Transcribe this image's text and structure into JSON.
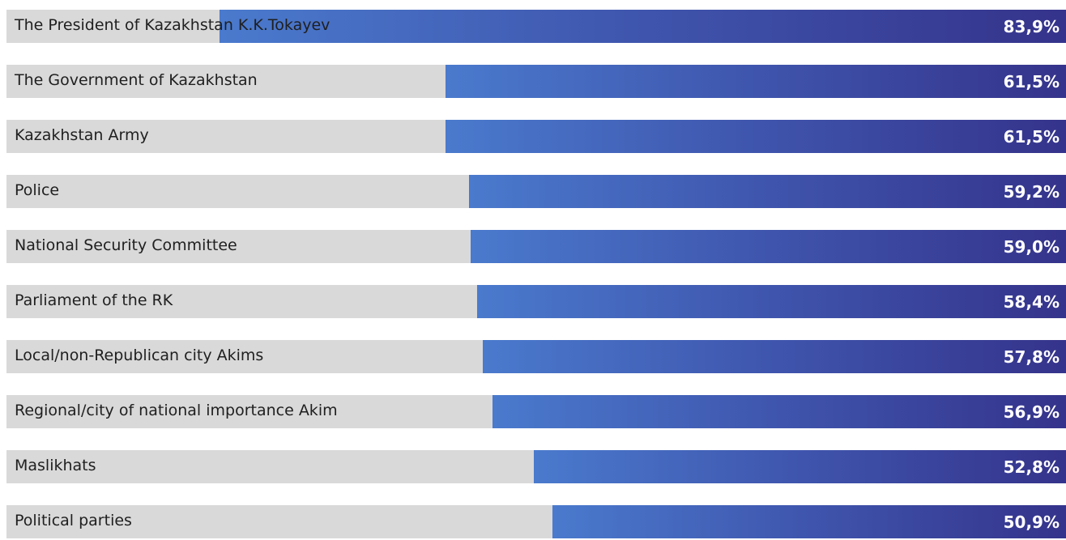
{
  "chart_data": {
    "type": "bar",
    "orientation": "horizontal",
    "categories": [
      "The President of Kazakhstan K.K.Tokayev",
      "The Government of Kazakhstan",
      "Kazakhstan Army",
      "Police",
      "National Security Committee",
      "Parliament of the RK",
      "Local/non-Republican city Akims",
      "Regional/city of national importance Akim",
      "Maslikhats",
      "Political parties"
    ],
    "values": [
      83.9,
      61.5,
      61.5,
      59.2,
      59.0,
      58.4,
      57.8,
      56.9,
      52.8,
      50.9
    ],
    "value_labels": [
      "83,9%",
      "61,5%",
      "61,5%",
      "59,2%",
      "59,0%",
      "58,4%",
      "57,8%",
      "56,9%",
      "52,8%",
      "50,9%"
    ],
    "title": "",
    "xlabel": "",
    "ylabel": "",
    "grid": false,
    "colors": {
      "track": "#d9d9d9",
      "bar_start": "#4a7acd",
      "bar_mid": "#3f55ad",
      "bar_end": "#35338b",
      "label_text": "#1f1f1f",
      "value_text": "#ffffff"
    }
  }
}
